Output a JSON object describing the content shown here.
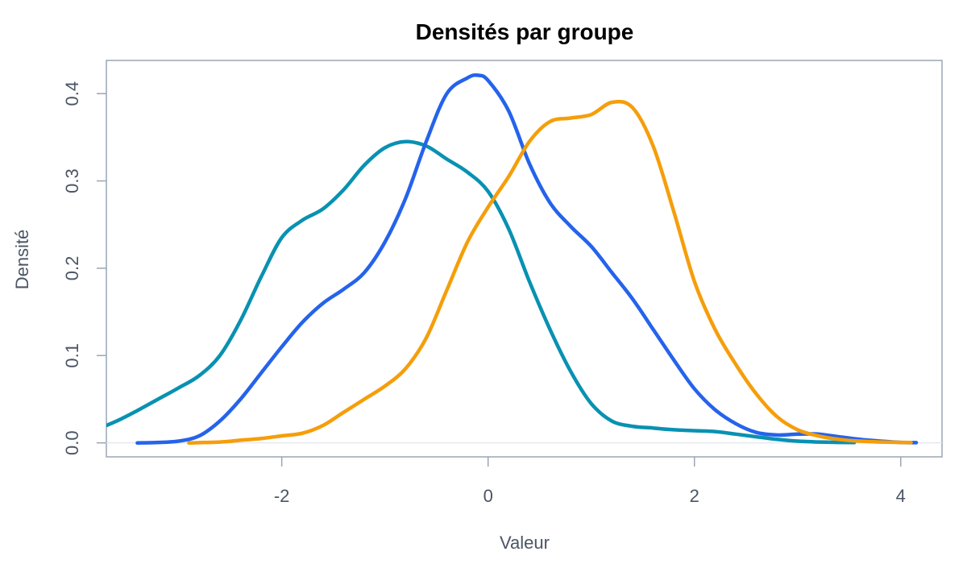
{
  "chart_data": {
    "type": "line",
    "title": "Densités par groupe",
    "xlabel": "Valeur",
    "ylabel": "Densité",
    "xlim": [
      -3.7,
      4.4
    ],
    "ylim": [
      -0.016,
      0.438
    ],
    "xticks": [
      -2,
      0,
      2,
      4
    ],
    "xtick_labels": [
      "-2",
      "0",
      "2",
      "4"
    ],
    "yticks": [
      0.0,
      0.1,
      0.2,
      0.3,
      0.4
    ],
    "ytick_labels": [
      "0.0",
      "0.1",
      "0.2",
      "0.3",
      "0.4"
    ],
    "grid": false,
    "reference_line_y": 0,
    "series": [
      {
        "color": "#0891b2",
        "x": [
          -3.8,
          -3.6,
          -3.4,
          -3.2,
          -3.0,
          -2.8,
          -2.6,
          -2.4,
          -2.2,
          -2.0,
          -1.8,
          -1.6,
          -1.4,
          -1.2,
          -1.0,
          -0.8,
          -0.6,
          -0.4,
          -0.2,
          0.0,
          0.2,
          0.4,
          0.6,
          0.8,
          1.0,
          1.2,
          1.4,
          1.6,
          1.8,
          2.0,
          2.2,
          2.4,
          2.6,
          2.8,
          3.0,
          3.2,
          3.4,
          3.55
        ],
        "y": [
          0.015,
          0.025,
          0.037,
          0.05,
          0.063,
          0.077,
          0.1,
          0.14,
          0.19,
          0.235,
          0.255,
          0.268,
          0.29,
          0.318,
          0.338,
          0.345,
          0.34,
          0.325,
          0.31,
          0.288,
          0.245,
          0.185,
          0.13,
          0.082,
          0.045,
          0.025,
          0.019,
          0.017,
          0.015,
          0.014,
          0.013,
          0.01,
          0.007,
          0.004,
          0.002,
          0.001,
          0.0005,
          0.0003
        ]
      },
      {
        "color": "#2563eb",
        "x": [
          -3.4,
          -3.2,
          -3.0,
          -2.8,
          -2.6,
          -2.4,
          -2.2,
          -2.0,
          -1.8,
          -1.6,
          -1.4,
          -1.2,
          -1.0,
          -0.8,
          -0.6,
          -0.4,
          -0.2,
          -0.1,
          0.0,
          0.2,
          0.4,
          0.6,
          0.8,
          1.0,
          1.2,
          1.4,
          1.6,
          1.8,
          2.0,
          2.2,
          2.4,
          2.6,
          2.8,
          3.0,
          3.2,
          3.4,
          3.6,
          3.8,
          4.0,
          4.15
        ],
        "y": [
          0.0,
          0.0005,
          0.002,
          0.008,
          0.025,
          0.05,
          0.08,
          0.11,
          0.138,
          0.16,
          0.176,
          0.195,
          0.23,
          0.28,
          0.345,
          0.4,
          0.418,
          0.421,
          0.415,
          0.38,
          0.32,
          0.275,
          0.248,
          0.225,
          0.195,
          0.165,
          0.13,
          0.095,
          0.062,
          0.038,
          0.022,
          0.012,
          0.009,
          0.01,
          0.01,
          0.007,
          0.004,
          0.002,
          0.0005,
          0.0002
        ]
      },
      {
        "color": "#f59e0b",
        "x": [
          -2.9,
          -2.6,
          -2.4,
          -2.2,
          -2.0,
          -1.8,
          -1.6,
          -1.4,
          -1.2,
          -1.0,
          -0.8,
          -0.6,
          -0.4,
          -0.2,
          0.0,
          0.2,
          0.4,
          0.6,
          0.8,
          1.0,
          1.2,
          1.4,
          1.6,
          1.8,
          2.0,
          2.2,
          2.4,
          2.6,
          2.8,
          3.0,
          3.2,
          3.4,
          3.6,
          3.8,
          4.0,
          4.1
        ],
        "y": [
          0.0,
          0.001,
          0.003,
          0.005,
          0.008,
          0.011,
          0.02,
          0.035,
          0.05,
          0.065,
          0.085,
          0.12,
          0.175,
          0.23,
          0.27,
          0.305,
          0.345,
          0.368,
          0.372,
          0.376,
          0.39,
          0.384,
          0.34,
          0.265,
          0.185,
          0.13,
          0.09,
          0.056,
          0.03,
          0.015,
          0.008,
          0.004,
          0.002,
          0.001,
          0.0005,
          0.0003
        ]
      }
    ]
  }
}
